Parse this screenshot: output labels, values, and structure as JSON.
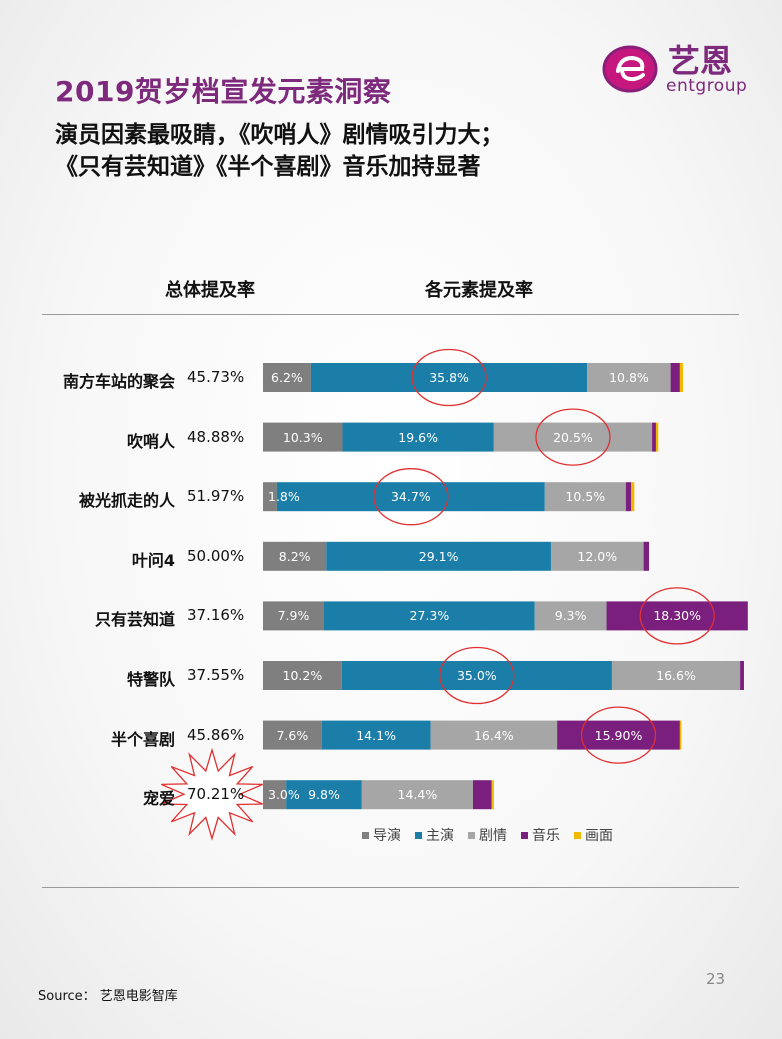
{
  "header": {
    "title": "2019贺岁档宣发元素洞察",
    "subtitle_line1": "演员因素最吸睛，《吹哨人》剧情吸引力大；",
    "subtitle_line2": "《只有芸知道》《半个喜剧》音乐加持显著"
  },
  "logo": {
    "cn": "艺恩",
    "en": "entgroup",
    "icon": "e-logo-icon"
  },
  "columns": {
    "left": "总体提及率",
    "right": "各元素提及率"
  },
  "colors": {
    "导演": "#7f7f7f",
    "主演": "#1a7ea8",
    "剧情": "#a6a6a6",
    "音乐": "#7a1f7d",
    "画面": "#f2b800",
    "highlight": "#e03030",
    "title": "#7e2a7c"
  },
  "chart_data": {
    "type": "bar",
    "orientation": "horizontal",
    "stacked": true,
    "categories": [
      "南方车站的聚会",
      "吹哨人",
      "被光抓走的人",
      "叶问4",
      "只有芸知道",
      "特警队",
      "半个喜剧",
      "宠爱"
    ],
    "overall_rate": [
      "45.73%",
      "48.88%",
      "51.97%",
      "50.00%",
      "37.16%",
      "37.55%",
      "45.86%",
      "70.21%"
    ],
    "series": [
      {
        "name": "导演",
        "values": [
          6.2,
          10.3,
          1.8,
          8.2,
          7.9,
          10.2,
          7.6,
          3.0
        ],
        "labels": [
          "6.2%",
          "10.3%",
          "1.8%",
          "8.2%",
          "7.9%",
          "10.2%",
          "7.6%",
          "3.0%"
        ]
      },
      {
        "name": "主演",
        "values": [
          35.8,
          19.6,
          34.7,
          29.1,
          27.3,
          35.0,
          14.1,
          9.8
        ],
        "labels": [
          "35.8%",
          "19.6%",
          "34.7%",
          "29.1%",
          "27.3%",
          "35.0%",
          "14.1%",
          "9.8%"
        ]
      },
      {
        "name": "剧情",
        "values": [
          10.8,
          20.5,
          10.5,
          12.0,
          9.3,
          16.6,
          16.4,
          14.4
        ],
        "labels": [
          "10.8%",
          "20.5%",
          "10.5%",
          "12.0%",
          "9.3%",
          "16.6%",
          "16.4%",
          "14.4%"
        ]
      },
      {
        "name": "音乐",
        "values": [
          1.2,
          0.5,
          0.7,
          0.7,
          18.3,
          0.5,
          15.9,
          2.4
        ],
        "labels": [
          "",
          "",
          "",
          "",
          "18.30%",
          "",
          "15.90%",
          ""
        ]
      },
      {
        "name": "画面",
        "values": [
          0.4,
          0.3,
          0.4,
          0.0,
          0.0,
          0.0,
          0.2,
          0.3
        ],
        "labels": [
          "",
          "",
          "",
          "",
          "",
          "",
          "",
          ""
        ]
      }
    ],
    "highlights": [
      {
        "row": 0,
        "series": 1
      },
      {
        "row": 1,
        "series": 2
      },
      {
        "row": 2,
        "series": 1
      },
      {
        "row": 4,
        "series": 3
      },
      {
        "row": 5,
        "series": 1
      },
      {
        "row": 6,
        "series": 3
      }
    ],
    "starburst_row": 7,
    "legend": [
      "导演",
      "主演",
      "剧情",
      "音乐",
      "画面"
    ],
    "legend_placement": "bottom",
    "grid": false
  },
  "footer": {
    "page": "23",
    "source": "Source： 艺恩电影智库"
  }
}
